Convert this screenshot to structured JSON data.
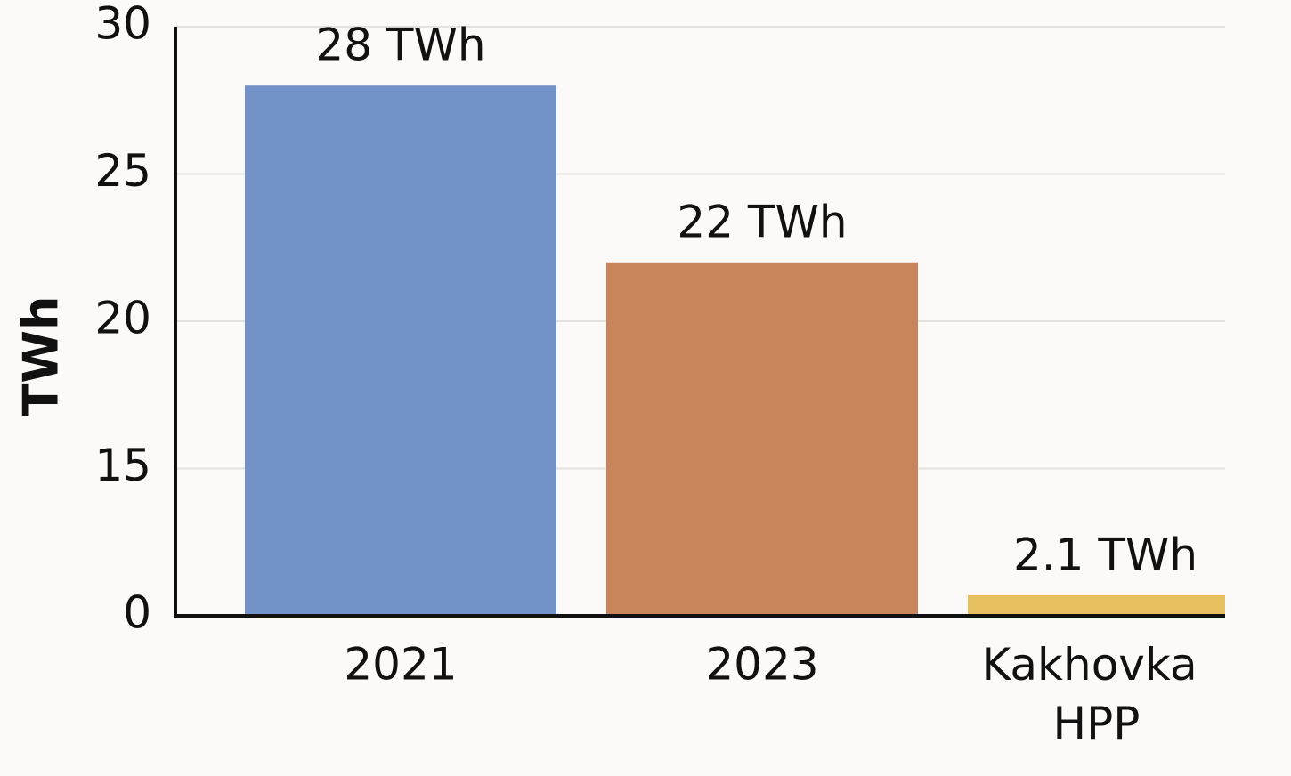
{
  "chart_data": {
    "type": "bar",
    "y_label": "TWh",
    "categories": [
      "2021",
      "2023",
      "Kakhovka HPP"
    ],
    "values": [
      28,
      22,
      2.1
    ],
    "value_labels": [
      "28 TWh",
      "22 TWh",
      "2.1 TWh"
    ],
    "colors": [
      "#7393c8",
      "#c8845a",
      "#e6bf5e"
    ],
    "ylim": [
      0,
      30
    ],
    "yticks": [
      0,
      15,
      20,
      25,
      30
    ],
    "grid": true
  }
}
